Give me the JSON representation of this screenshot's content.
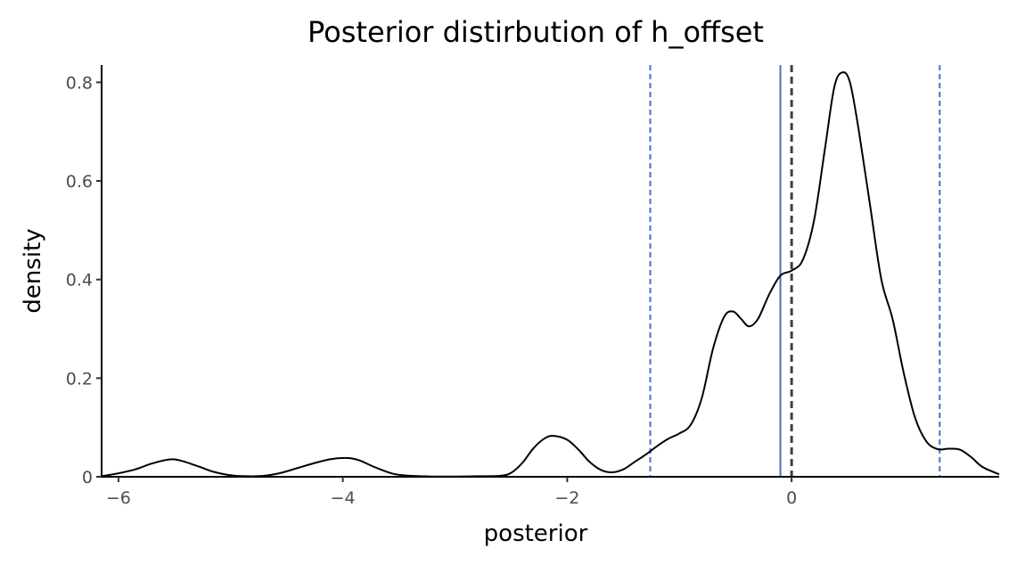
{
  "chart_data": {
    "type": "line",
    "title": "Posterior distirbution of h_offset",
    "xlabel": "posterior",
    "ylabel": "density",
    "xlim": [
      -6.15,
      1.85
    ],
    "ylim": [
      0,
      0.835
    ],
    "x_ticks": [
      -6,
      -4,
      -2,
      0
    ],
    "x_tick_labels": [
      "−6",
      "−4",
      "−2",
      "0"
    ],
    "y_ticks": [
      0,
      0.2,
      0.4,
      0.6,
      0.8
    ],
    "y_tick_labels": [
      "0",
      "0.2",
      "0.4",
      "0.6",
      "0.8"
    ],
    "grid": false,
    "series": [
      {
        "color": "#000000",
        "x": [
          -6.15,
          -6.0,
          -5.85,
          -5.7,
          -5.55,
          -5.45,
          -5.3,
          -5.15,
          -5.0,
          -4.85,
          -4.7,
          -4.55,
          -4.4,
          -4.25,
          -4.1,
          -3.95,
          -3.85,
          -3.7,
          -3.55,
          -3.4,
          -3.2,
          -3.0,
          -2.8,
          -2.6,
          -2.5,
          -2.4,
          -2.3,
          -2.2,
          -2.12,
          -2.0,
          -1.9,
          -1.8,
          -1.7,
          -1.6,
          -1.5,
          -1.4,
          -1.3,
          -1.2,
          -1.1,
          -1.0,
          -0.9,
          -0.8,
          -0.7,
          -0.6,
          -0.52,
          -0.45,
          -0.38,
          -0.3,
          -0.2,
          -0.1,
          0.0,
          0.1,
          0.2,
          0.3,
          0.38,
          0.45,
          0.52,
          0.6,
          0.7,
          0.8,
          0.9,
          1.0,
          1.1,
          1.2,
          1.3,
          1.4,
          1.5,
          1.6,
          1.7,
          1.85
        ],
        "y": [
          0.001,
          0.007,
          0.015,
          0.027,
          0.035,
          0.033,
          0.022,
          0.01,
          0.003,
          0.001,
          0.002,
          0.008,
          0.018,
          0.028,
          0.036,
          0.038,
          0.033,
          0.018,
          0.006,
          0.002,
          0.0005,
          0.0005,
          0.001,
          0.002,
          0.008,
          0.028,
          0.058,
          0.078,
          0.083,
          0.075,
          0.055,
          0.03,
          0.014,
          0.009,
          0.015,
          0.03,
          0.045,
          0.062,
          0.077,
          0.088,
          0.105,
          0.16,
          0.26,
          0.325,
          0.335,
          0.32,
          0.305,
          0.32,
          0.37,
          0.408,
          0.418,
          0.44,
          0.52,
          0.67,
          0.79,
          0.82,
          0.8,
          0.7,
          0.55,
          0.4,
          0.32,
          0.21,
          0.12,
          0.072,
          0.056,
          0.057,
          0.055,
          0.04,
          0.02,
          0.005
        ]
      }
    ],
    "vlines": [
      {
        "x": -1.26,
        "color": "#4472c4",
        "style": "dashed"
      },
      {
        "x": 1.32,
        "color": "#4472c4",
        "style": "dashed"
      },
      {
        "x": -0.1,
        "color": "#4472c4",
        "style": "solid"
      },
      {
        "x": 0.0,
        "color": "#404040",
        "style": "dashed"
      }
    ]
  }
}
